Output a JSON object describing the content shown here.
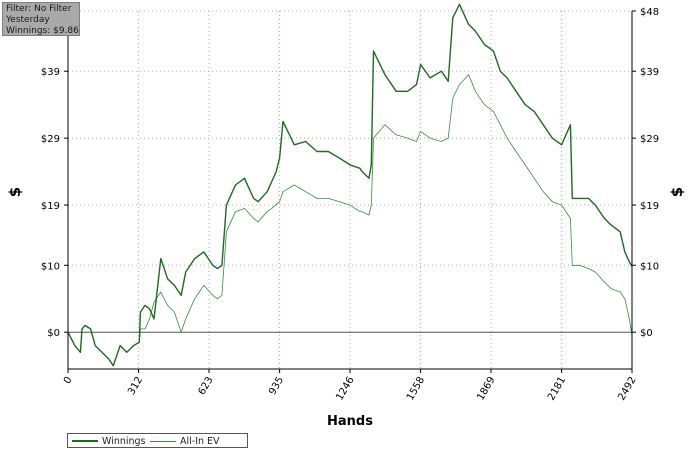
{
  "filter_info": {
    "line1": "Filter: No Filter",
    "line2": "Yesterday",
    "line3": "Winnings: $9.86"
  },
  "colors": {
    "winnings": "#1e6b1e",
    "allin_ev": "#3a8a3a",
    "grid": "#b0b0b0",
    "axis": "#000000"
  },
  "chart_data": {
    "type": "line",
    "title": "",
    "xlabel": "Hands",
    "ylabel": "$",
    "xlim": [
      0,
      2492
    ],
    "ylim": [
      -5.5,
      48
    ],
    "grid": true,
    "legend_position": "bottom-left",
    "x_ticks": [
      0,
      312,
      623,
      935,
      1246,
      1558,
      1869,
      2181,
      2492
    ],
    "x_tick_labels": [
      "0",
      "312",
      "623",
      "935",
      "1246",
      "1558",
      "1869",
      "2181",
      "2492"
    ],
    "y_ticks": [
      0,
      10,
      19,
      29,
      39,
      48
    ],
    "y_tick_labels": [
      "$0",
      "$10",
      "$19",
      "$29",
      "$39",
      "$48"
    ],
    "series": [
      {
        "name": "Winnings",
        "points": [
          [
            0,
            0
          ],
          [
            30,
            -2
          ],
          [
            55,
            -3
          ],
          [
            62,
            0.5
          ],
          [
            75,
            1
          ],
          [
            100,
            0.5
          ],
          [
            120,
            -2
          ],
          [
            150,
            -3
          ],
          [
            180,
            -4
          ],
          [
            200,
            -5
          ],
          [
            230,
            -2
          ],
          [
            260,
            -3
          ],
          [
            290,
            -2
          ],
          [
            315,
            -1.5
          ],
          [
            320,
            3
          ],
          [
            340,
            4
          ],
          [
            360,
            3.5
          ],
          [
            380,
            2
          ],
          [
            410,
            11
          ],
          [
            440,
            8
          ],
          [
            470,
            7
          ],
          [
            500,
            5.5
          ],
          [
            520,
            9
          ],
          [
            560,
            11
          ],
          [
            600,
            12
          ],
          [
            640,
            10
          ],
          [
            660,
            9.5
          ],
          [
            680,
            10
          ],
          [
            700,
            19
          ],
          [
            740,
            22
          ],
          [
            780,
            23
          ],
          [
            820,
            20
          ],
          [
            840,
            19.5
          ],
          [
            880,
            21
          ],
          [
            920,
            24
          ],
          [
            935,
            26
          ],
          [
            950,
            31.5
          ],
          [
            1000,
            28
          ],
          [
            1050,
            28.5
          ],
          [
            1100,
            27
          ],
          [
            1150,
            27
          ],
          [
            1200,
            26
          ],
          [
            1246,
            25
          ],
          [
            1290,
            24.5
          ],
          [
            1300,
            24
          ],
          [
            1330,
            23
          ],
          [
            1340,
            25
          ],
          [
            1350,
            42
          ],
          [
            1400,
            38.5
          ],
          [
            1450,
            36
          ],
          [
            1500,
            36
          ],
          [
            1540,
            37
          ],
          [
            1558,
            40
          ],
          [
            1600,
            38
          ],
          [
            1650,
            39
          ],
          [
            1680,
            37.5
          ],
          [
            1700,
            47
          ],
          [
            1730,
            49
          ],
          [
            1770,
            46
          ],
          [
            1800,
            45
          ],
          [
            1840,
            43
          ],
          [
            1880,
            42
          ],
          [
            1910,
            39
          ],
          [
            1940,
            38
          ],
          [
            1980,
            36
          ],
          [
            2020,
            34
          ],
          [
            2060,
            33
          ],
          [
            2100,
            31
          ],
          [
            2140,
            29
          ],
          [
            2181,
            28
          ],
          [
            2220,
            31
          ],
          [
            2228,
            20
          ],
          [
            2260,
            20
          ],
          [
            2300,
            20
          ],
          [
            2330,
            19
          ],
          [
            2370,
            17
          ],
          [
            2400,
            16
          ],
          [
            2440,
            15
          ],
          [
            2460,
            12
          ],
          [
            2480,
            10.5
          ],
          [
            2492,
            9.86
          ]
        ]
      },
      {
        "name": "All-In EV",
        "points": [
          [
            0,
            0
          ],
          [
            30,
            -2
          ],
          [
            55,
            -3
          ],
          [
            62,
            0.5
          ],
          [
            75,
            1
          ],
          [
            100,
            0.5
          ],
          [
            120,
            -2
          ],
          [
            150,
            -3
          ],
          [
            180,
            -4
          ],
          [
            200,
            -5
          ],
          [
            230,
            -2
          ],
          [
            260,
            -3
          ],
          [
            290,
            -2
          ],
          [
            315,
            -1.5
          ],
          [
            320,
            0.5
          ],
          [
            340,
            0.5
          ],
          [
            360,
            2
          ],
          [
            380,
            4.5
          ],
          [
            410,
            6
          ],
          [
            440,
            4
          ],
          [
            470,
            3
          ],
          [
            500,
            0
          ],
          [
            520,
            2
          ],
          [
            560,
            5
          ],
          [
            600,
            7
          ],
          [
            640,
            5.5
          ],
          [
            660,
            5
          ],
          [
            680,
            5.5
          ],
          [
            700,
            15
          ],
          [
            740,
            18
          ],
          [
            780,
            18.5
          ],
          [
            820,
            17
          ],
          [
            840,
            16.5
          ],
          [
            880,
            18
          ],
          [
            900,
            18.5
          ],
          [
            935,
            19.5
          ],
          [
            950,
            21
          ],
          [
            1000,
            22
          ],
          [
            1050,
            21
          ],
          [
            1100,
            20
          ],
          [
            1150,
            20
          ],
          [
            1200,
            19.5
          ],
          [
            1246,
            19
          ],
          [
            1290,
            18
          ],
          [
            1300,
            18
          ],
          [
            1330,
            17.5
          ],
          [
            1340,
            19
          ],
          [
            1350,
            29
          ],
          [
            1400,
            31
          ],
          [
            1450,
            29.5
          ],
          [
            1500,
            29
          ],
          [
            1540,
            28.5
          ],
          [
            1558,
            30
          ],
          [
            1600,
            29
          ],
          [
            1650,
            28.5
          ],
          [
            1680,
            29
          ],
          [
            1700,
            35
          ],
          [
            1730,
            37
          ],
          [
            1770,
            38.5
          ],
          [
            1800,
            36
          ],
          [
            1840,
            34
          ],
          [
            1880,
            33
          ],
          [
            1910,
            31
          ],
          [
            1940,
            29
          ],
          [
            1980,
            27
          ],
          [
            2020,
            25
          ],
          [
            2060,
            23
          ],
          [
            2100,
            21
          ],
          [
            2140,
            19.5
          ],
          [
            2181,
            19
          ],
          [
            2220,
            17
          ],
          [
            2228,
            10
          ],
          [
            2260,
            10
          ],
          [
            2300,
            9.5
          ],
          [
            2330,
            9
          ],
          [
            2370,
            7.5
          ],
          [
            2400,
            6.5
          ],
          [
            2440,
            6
          ],
          [
            2460,
            5
          ],
          [
            2480,
            2
          ],
          [
            2492,
            -0.5
          ]
        ]
      }
    ]
  }
}
